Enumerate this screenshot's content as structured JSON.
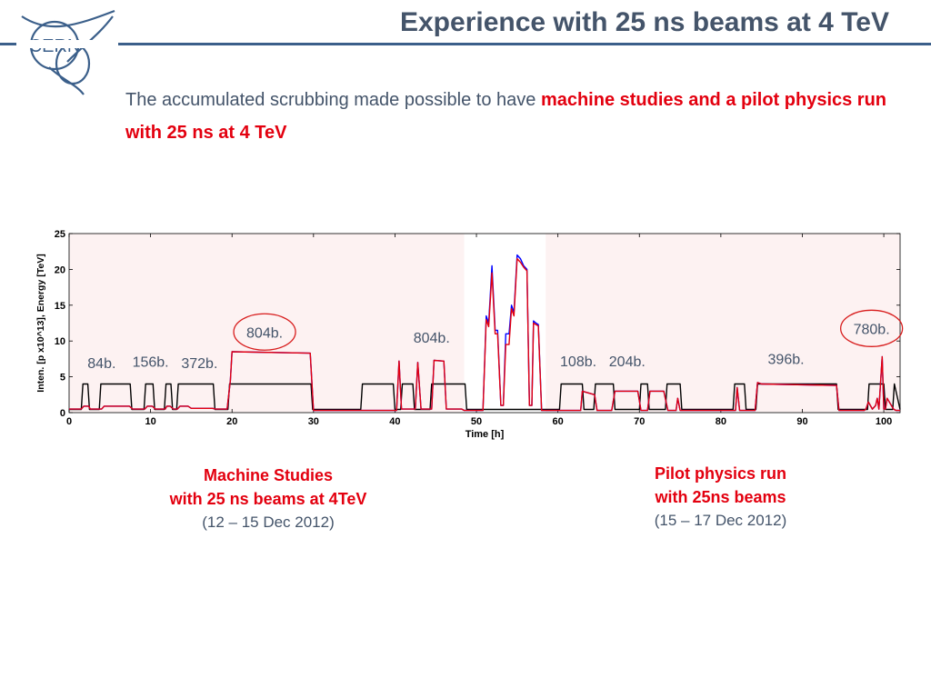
{
  "header": {
    "title": "Experience with 25 ns beams at 4 TeV",
    "logo_text": "CERN"
  },
  "subtitle": {
    "plain": "The accumulated scrubbing made possible to have ",
    "highlight": "machine studies and a pilot physics run with 25 ns at 4 TeV"
  },
  "captions": {
    "left": {
      "line1": "Machine Studies",
      "line2": "with 25 ns beams at 4TeV",
      "line3": "(12 – 15 Dec 2012)"
    },
    "right": {
      "line1": "Pilot physics run",
      "line2": "with 25ns beams",
      "line3": "(15 – 17 Dec 2012)"
    }
  },
  "colors": {
    "accent": "#e3000f",
    "text": "#44546a",
    "rule": "#3b5f8a",
    "plot_bg": "#fdf2f2",
    "energy": "#000000",
    "beam1": "#0000ff",
    "beam2": "#e3000f"
  },
  "chart_data": {
    "type": "line",
    "title": "",
    "xlabel": "Time [h]",
    "ylabel": "Inten. [p x10^13], Energy [TeV]",
    "xlim": [
      0,
      102
    ],
    "ylim": [
      0,
      25
    ],
    "xticks": [
      0,
      10,
      20,
      30,
      40,
      50,
      60,
      70,
      80,
      90,
      100
    ],
    "yticks": [
      0,
      5,
      10,
      15,
      20,
      25
    ],
    "grid": false,
    "shaded_regions": [
      [
        0,
        48.5
      ],
      [
        58.5,
        102
      ]
    ],
    "series": [
      {
        "name": "",
        "color": "#000000",
        "x": [
          0,
          1.5,
          1.7,
          2.3,
          2.5,
          3.7,
          3.9,
          4.1,
          7.5,
          7.7,
          9.2,
          9.4,
          10.3,
          10.5,
          11.7,
          11.9,
          12.5,
          12.7,
          13.2,
          13.4,
          14.5,
          14.7,
          17.7,
          17.9,
          19.5,
          19.7,
          29.7,
          29.9,
          35.8,
          36,
          39.8,
          40,
          40.7,
          40.9,
          42.2,
          42.4,
          44.3,
          44.5,
          48.6,
          48.8,
          60,
          60.2,
          60.4,
          63,
          63.2,
          64.4,
          64.6,
          66.8,
          67,
          70,
          70.2,
          71,
          71.2,
          73.2,
          73.4,
          75,
          75.2,
          81.5,
          81.7,
          82.9,
          83.1,
          84.3,
          84.5,
          94.2,
          94.4,
          98,
          98.2,
          100,
          100.2,
          101.1,
          101.3,
          102
        ],
        "y": [
          0.45,
          0.45,
          4,
          4,
          0.45,
          0.45,
          4,
          4,
          4,
          0.45,
          0.45,
          4,
          4,
          0.45,
          0.45,
          4,
          4,
          0.45,
          0.45,
          4,
          4,
          4,
          4,
          0.45,
          0.45,
          4,
          4,
          0.45,
          0.45,
          4,
          4,
          0.45,
          0.45,
          4,
          4,
          0.45,
          0.45,
          4,
          4,
          0.45,
          0.45,
          0.45,
          4,
          4,
          0.45,
          0.45,
          4,
          4,
          0.45,
          0.45,
          4,
          4,
          0.45,
          0.45,
          4,
          4,
          0.45,
          0.45,
          4,
          4,
          0.45,
          0.45,
          4,
          4,
          0.45,
          0.45,
          4,
          4,
          0.45,
          0.45,
          4,
          0.45
        ]
      },
      {
        "name": "",
        "color": "#0000ff",
        "x": [
          0,
          1.5,
          1.8,
          2.4,
          2.6,
          4,
          4.3,
          7.4,
          7.8,
          9.3,
          9.6,
          10.2,
          10.6,
          11.8,
          12,
          12.4,
          12.8,
          13.3,
          13.6,
          14.6,
          15,
          17.6,
          18,
          19.4,
          19.8,
          20,
          29.6,
          30,
          40.2,
          40.5,
          40.8,
          42.5,
          42.8,
          43.2,
          44.5,
          44.8,
          46,
          46.3,
          48.2,
          48.5,
          50.8,
          51.2,
          51.5,
          51.9,
          52.3,
          52.6,
          53,
          53.3,
          53.6,
          54,
          54.3,
          54.6,
          55,
          55.4,
          55.8,
          56.2,
          56.5,
          56.8,
          57,
          57.3,
          57.6,
          58,
          58.3,
          62.8,
          63,
          64.5,
          64.8,
          66.6,
          67,
          69.8,
          70.2,
          71,
          71.3,
          73,
          73.5,
          74.5,
          74.7,
          75,
          81.8,
          82,
          82.3,
          84.2,
          84.5,
          85,
          94.2,
          94.5,
          97.6,
          97.8,
          98.1,
          98.6,
          99,
          99.2,
          99.4,
          99.8,
          100,
          100.2,
          100.4,
          101.2,
          101.5,
          102
        ],
        "y": [
          0.5,
          0.5,
          0.9,
          0.9,
          0.5,
          0.5,
          0.9,
          0.9,
          0.5,
          0.5,
          0.9,
          0.9,
          0.5,
          0.5,
          0.9,
          0.9,
          0.5,
          0.5,
          0.9,
          0.9,
          0.6,
          0.6,
          0.5,
          0.5,
          4.5,
          8.5,
          8.3,
          0.3,
          0.3,
          7.2,
          0.5,
          0.5,
          7,
          0.5,
          0.5,
          7.3,
          7.2,
          0.5,
          0.5,
          0.3,
          0.3,
          13.5,
          12.5,
          20.5,
          11.5,
          11.5,
          1,
          1,
          11,
          11,
          15,
          14,
          22,
          21.5,
          20.5,
          20,
          1,
          1,
          12.8,
          12.5,
          12.3,
          0.3,
          0.3,
          0.3,
          3,
          2.5,
          0.3,
          0.3,
          3,
          3,
          0.3,
          0.3,
          3,
          3,
          0.3,
          0.3,
          2,
          0.3,
          0.3,
          3.5,
          0.3,
          0.3,
          4.2,
          4,
          3.8,
          0.3,
          0.3,
          0.5,
          1.5,
          0.5,
          1,
          2,
          0.5,
          7.8,
          0.5,
          0.5,
          2,
          0.5,
          0.3,
          0.3
        ]
      },
      {
        "name": "",
        "color": "#e3000f",
        "x": [
          0,
          1.5,
          1.8,
          2.4,
          2.6,
          4,
          4.3,
          7.4,
          7.8,
          9.3,
          9.6,
          10.2,
          10.6,
          11.8,
          12,
          12.4,
          12.8,
          13.3,
          13.6,
          14.6,
          15,
          17.6,
          18,
          19.4,
          19.8,
          20,
          29.6,
          30,
          40.2,
          40.5,
          40.8,
          42.5,
          42.8,
          43.2,
          44.5,
          44.8,
          46,
          46.3,
          48.2,
          48.5,
          50.8,
          51.2,
          51.5,
          51.9,
          52.3,
          52.6,
          53,
          53.3,
          53.6,
          54,
          54.3,
          54.6,
          55,
          55.4,
          55.8,
          56.2,
          56.5,
          56.8,
          57,
          57.3,
          57.6,
          58,
          58.3,
          62.8,
          63,
          64.5,
          64.8,
          66.6,
          67,
          69.8,
          70.2,
          71,
          71.3,
          73,
          73.5,
          74.5,
          74.7,
          75,
          81.8,
          82,
          82.3,
          84.2,
          84.5,
          85,
          94.2,
          94.5,
          97.6,
          97.8,
          98.1,
          98.6,
          99,
          99.2,
          99.4,
          99.8,
          100,
          100.2,
          100.4,
          101.2,
          101.5,
          102
        ],
        "y": [
          0.5,
          0.5,
          0.9,
          0.9,
          0.5,
          0.5,
          0.9,
          0.9,
          0.5,
          0.5,
          0.9,
          0.9,
          0.5,
          0.5,
          0.9,
          0.9,
          0.5,
          0.5,
          0.9,
          0.9,
          0.6,
          0.6,
          0.5,
          0.5,
          4.5,
          8.5,
          8.3,
          0.3,
          0.3,
          7.2,
          0.5,
          0.5,
          7,
          0.5,
          0.5,
          7.3,
          7.2,
          0.5,
          0.5,
          0.3,
          0.3,
          13,
          12,
          19.5,
          11,
          11,
          1,
          1,
          9.5,
          9.5,
          14.5,
          13.5,
          21.5,
          21,
          20.3,
          19.8,
          1,
          1,
          12.5,
          12.3,
          12.1,
          0.3,
          0.3,
          0.3,
          3,
          2.5,
          0.3,
          0.3,
          3,
          3,
          0.3,
          0.3,
          3,
          3,
          0.3,
          0.3,
          2,
          0.3,
          0.3,
          3.5,
          0.3,
          0.3,
          4.2,
          4,
          3.8,
          0.3,
          0.3,
          0.5,
          1.5,
          0.5,
          1,
          2,
          0.5,
          7.8,
          0.5,
          0.5,
          2,
          0.5,
          0.3,
          0.3
        ]
      }
    ],
    "annotations": [
      {
        "text": "84b.",
        "x": 4,
        "y": 6.2,
        "circled": false
      },
      {
        "text": "156b.",
        "x": 10,
        "y": 6.4,
        "circled": false
      },
      {
        "text": "372b.",
        "x": 16,
        "y": 6.2,
        "circled": false
      },
      {
        "text": "804b.",
        "x": 24,
        "y": 10.5,
        "circled": true
      },
      {
        "text": "804b.",
        "x": 44.5,
        "y": 9.8,
        "circled": false
      },
      {
        "text": "108b.",
        "x": 62.5,
        "y": 6.5,
        "circled": false
      },
      {
        "text": "204b.",
        "x": 68.5,
        "y": 6.5,
        "circled": false
      },
      {
        "text": "396b.",
        "x": 88,
        "y": 6.8,
        "circled": false
      },
      {
        "text": "780b.",
        "x": 98.5,
        "y": 11,
        "circled": true
      }
    ]
  }
}
